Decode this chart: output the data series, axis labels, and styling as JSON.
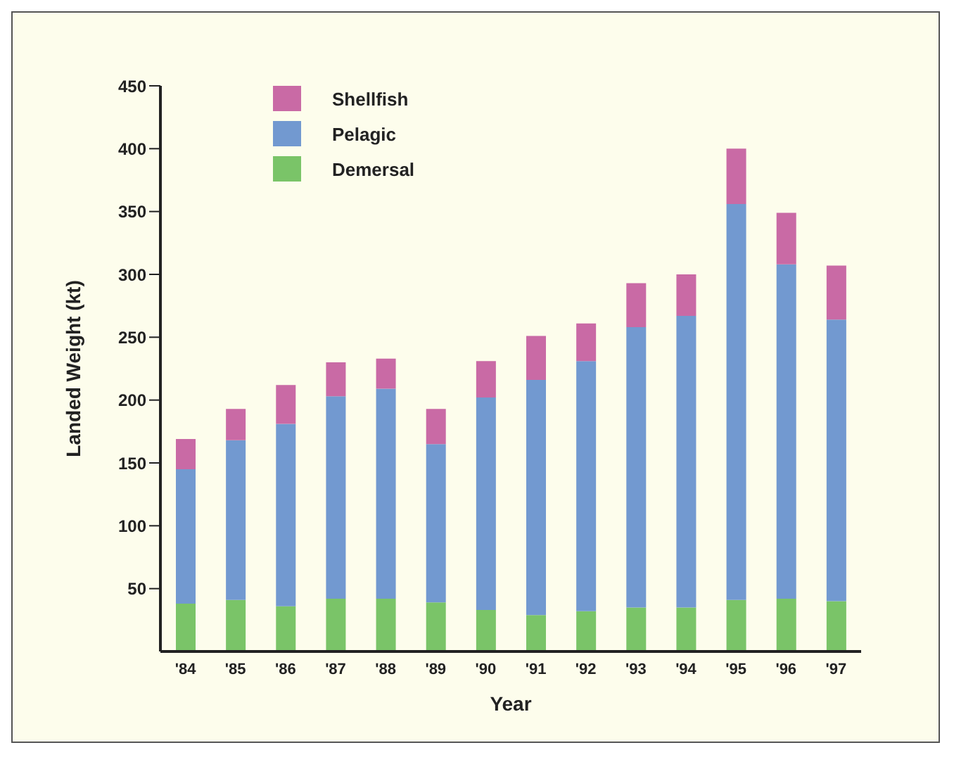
{
  "chart_data": {
    "type": "bar",
    "xlabel": "Year",
    "ylabel": "Landed Weight (kt)",
    "categories": [
      "'84",
      "'85",
      "'86",
      "'87",
      "'88",
      "'89",
      "'90",
      "'91",
      "'92",
      "'93",
      "'94",
      "'95",
      "'96",
      "'97"
    ],
    "stacked": true,
    "series": [
      {
        "name": "Demersal",
        "color": "#7ac468",
        "values": [
          38,
          41,
          36,
          42,
          42,
          39,
          33,
          29,
          32,
          35,
          35,
          41,
          42,
          40
        ]
      },
      {
        "name": "Pelagic",
        "color": "#7299d0",
        "values": [
          107,
          127,
          145,
          161,
          167,
          126,
          169,
          187,
          199,
          223,
          232,
          315,
          266,
          224
        ]
      },
      {
        "name": "Shellfish",
        "color": "#c96aa5",
        "values": [
          24,
          25,
          31,
          27,
          24,
          28,
          29,
          35,
          30,
          35,
          33,
          44,
          41,
          43
        ]
      }
    ],
    "ylim": [
      0,
      450
    ],
    "yticks": [
      50,
      100,
      150,
      200,
      250,
      300,
      350,
      400,
      450
    ],
    "grid": false,
    "legend": "top left"
  }
}
